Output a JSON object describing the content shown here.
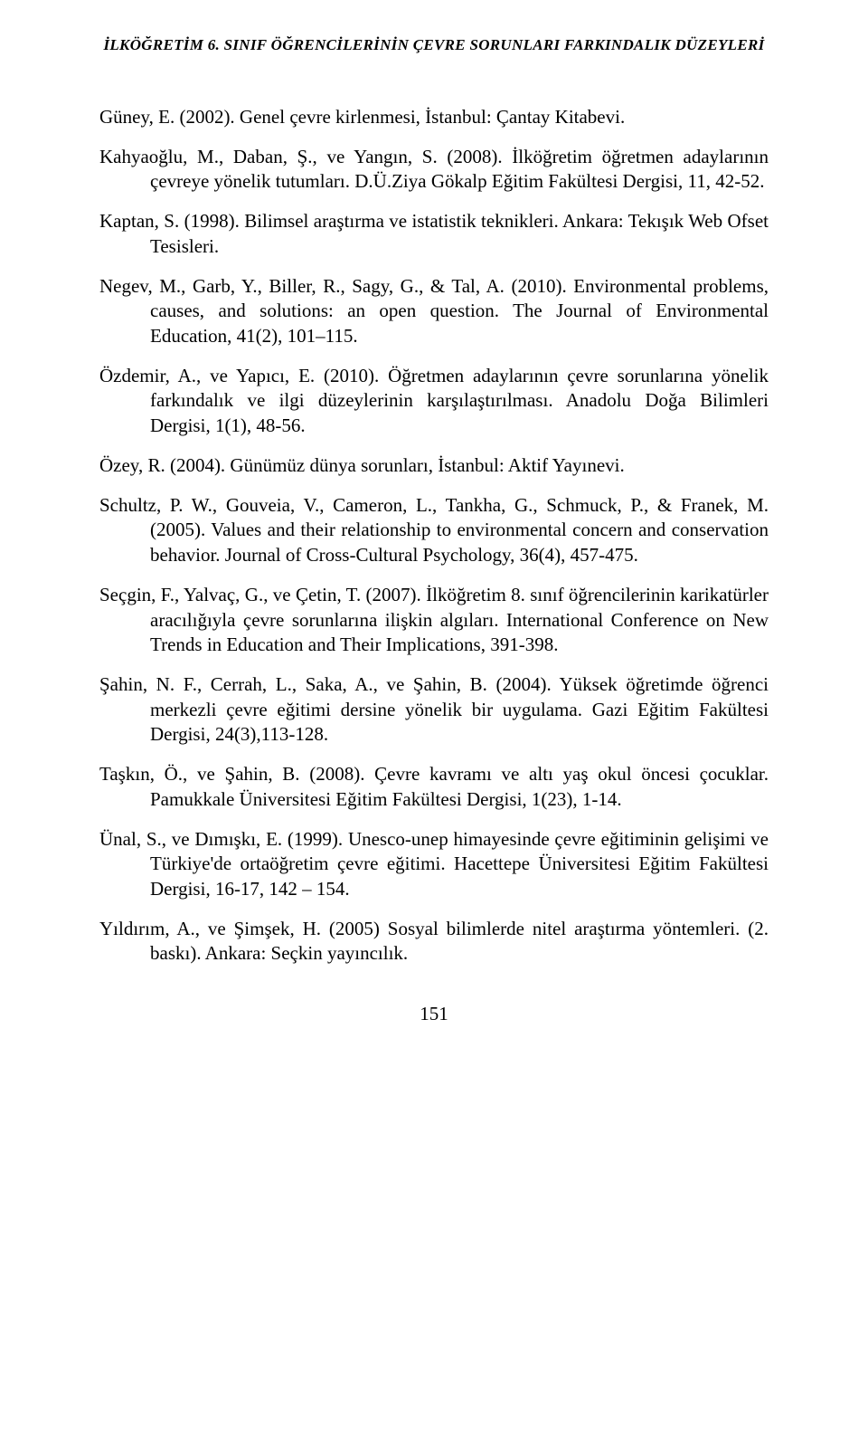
{
  "header": "İLKÖĞRETİM 6. SINIF ÖĞRENCİLERİNİN ÇEVRE SORUNLARI FARKINDALIK DÜZEYLERİ",
  "references": [
    "Güney, E. (2002). Genel çevre kirlenmesi, İstanbul: Çantay Kitabevi.",
    "Kahyaoğlu, M., Daban, Ş., ve Yangın, S. (2008). İlköğretim öğretmen adaylarının çevreye yönelik tutumları. D.Ü.Ziya Gökalp Eğitim Fakültesi Dergisi, 11, 42-52.",
    "Kaptan, S. (1998). Bilimsel araştırma ve istatistik teknikleri. Ankara: Tekışık Web Ofset Tesisleri.",
    "Negev, M., Garb, Y., Biller, R., Sagy, G., & Tal, A. (2010). Environmental problems, causes, and solutions: an open question. The Journal of Environmental Education, 41(2), 101–115.",
    "Özdemir, A., ve Yapıcı, E. (2010). Öğretmen adaylarının çevre sorunlarına yönelik farkındalık ve ilgi düzeylerinin karşılaştırılması. Anadolu Doğa Bilimleri Dergisi, 1(1), 48-56.",
    "Özey, R. (2004). Günümüz dünya sorunları, İstanbul: Aktif Yayınevi.",
    "Schultz, P. W., Gouveia, V., Cameron, L., Tankha, G., Schmuck, P., & Franek, M. (2005). Values and their relationship to environmental concern and conservation behavior. Journal of Cross-Cultural Psychology, 36(4), 457-475.",
    "Seçgin, F., Yalvaç, G., ve Çetin, T. (2007). İlköğretim 8. sınıf öğrencilerinin karikatürler aracılığıyla çevre sorunlarına ilişkin algıları. International Conference on New Trends in Education and Their Implications, 391-398.",
    "Şahin, N. F., Cerrah, L., Saka, A., ve Şahin, B. (2004). Yüksek öğretimde öğrenci merkezli çevre eğitimi dersine yönelik bir uygulama. Gazi Eğitim Fakültesi Dergisi, 24(3),113-128.",
    "Taşkın, Ö., ve Şahin, B. (2008). Çevre kavramı ve altı yaş okul öncesi çocuklar. Pamukkale Üniversitesi Eğitim Fakültesi Dergisi, 1(23), 1-14.",
    "Ünal, S., ve Dımışkı, E. (1999). Unesco-unep himayesinde çevre eğitiminin gelişimi ve Türkiye'de ortaöğretim çevre eğitimi. Hacettepe Üniversitesi Eğitim Fakültesi Dergisi, 16-17, 142 – 154.",
    "Yıldırım, A., ve Şimşek, H. (2005) Sosyal bilimlerde nitel araştırma yöntemleri. (2. baskı). Ankara: Seçkin yayıncılık."
  ],
  "page_number": "151"
}
